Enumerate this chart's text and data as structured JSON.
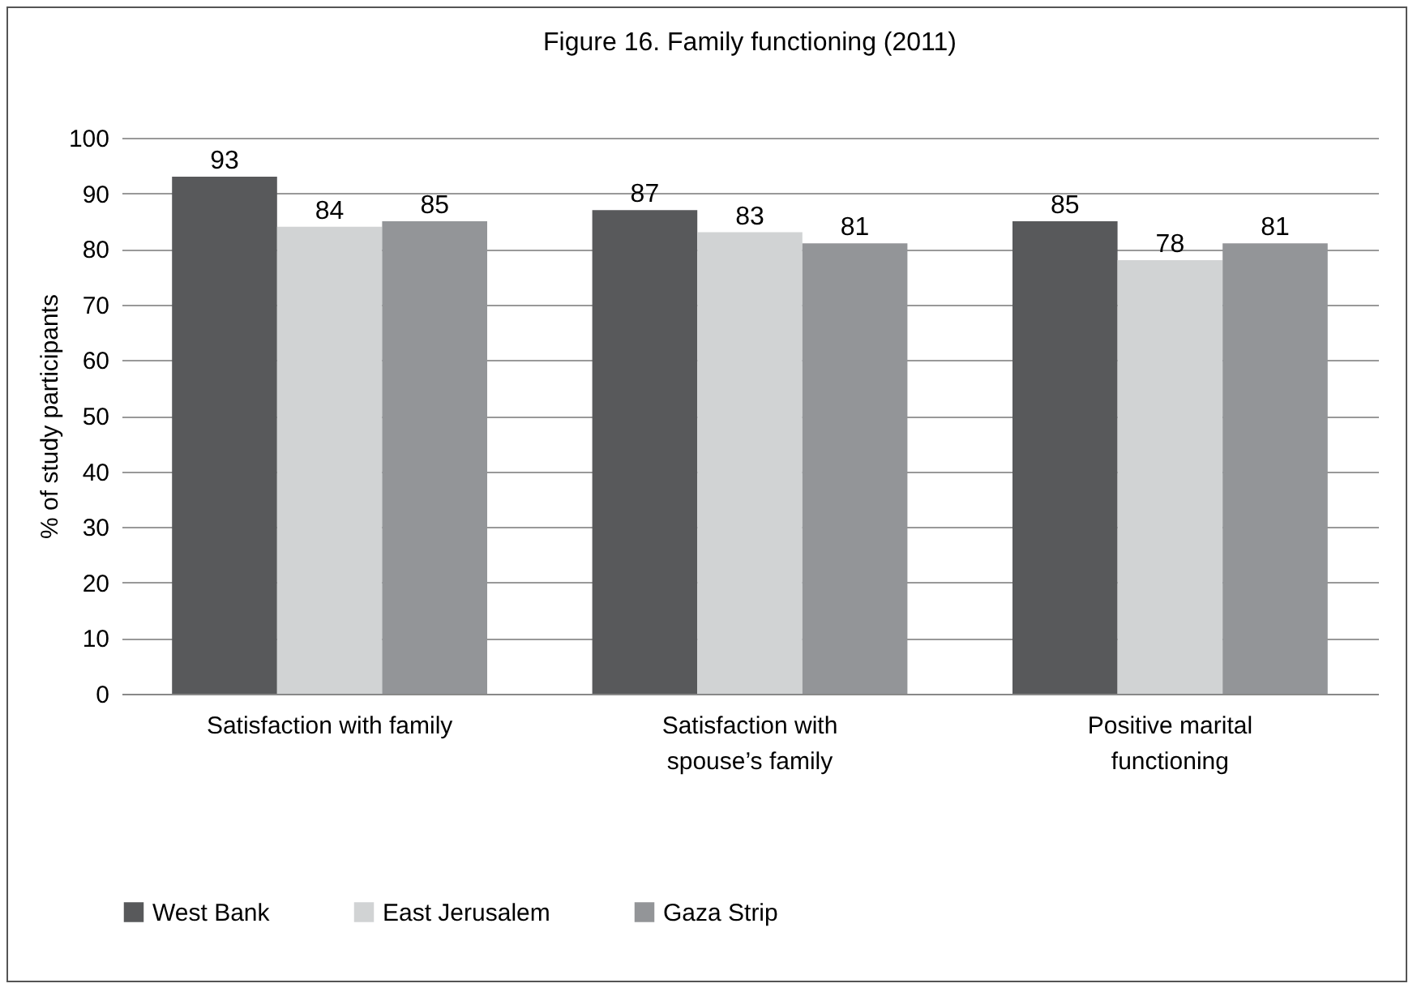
{
  "chart_data": {
    "type": "bar",
    "title": "Figure 16. Family functioning (2011)",
    "ylabel": "% of study participants",
    "categories": [
      "Satisfaction with family",
      "Satisfaction with spouse’s family",
      "Positive marital functioning"
    ],
    "series": [
      {
        "name": "West Bank",
        "color": "#58595b",
        "values": [
          93,
          87,
          85
        ]
      },
      {
        "name": "East Jerusalem",
        "color": "#d1d3d4",
        "values": [
          84,
          83,
          78
        ]
      },
      {
        "name": "Gaza Strip",
        "color": "#939598",
        "values": [
          85,
          81,
          81
        ]
      }
    ],
    "ylim": [
      0,
      100
    ],
    "yticks": [
      0,
      10,
      20,
      30,
      40,
      50,
      60,
      70,
      80,
      90,
      100
    ],
    "grid": "y",
    "legend": "bottom",
    "data_labels": true
  }
}
